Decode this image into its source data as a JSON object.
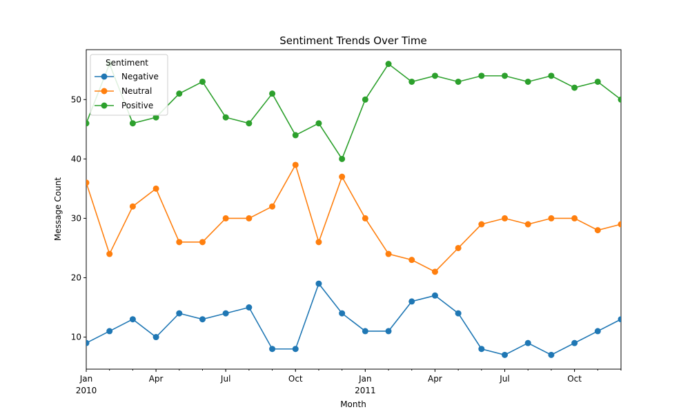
{
  "chart_data": {
    "type": "line",
    "title": "Sentiment Trends Over Time",
    "xlabel": "Month",
    "ylabel": "Message Count",
    "x": [
      "2010-01",
      "2010-02",
      "2010-03",
      "2010-04",
      "2010-05",
      "2010-06",
      "2010-07",
      "2010-08",
      "2010-09",
      "2010-10",
      "2010-11",
      "2010-12",
      "2011-01",
      "2011-02",
      "2011-03",
      "2011-04",
      "2011-05",
      "2011-06",
      "2011-07",
      "2011-08",
      "2011-09",
      "2011-10",
      "2011-11",
      "2011-12"
    ],
    "ylim": [
      4.6,
      58.4
    ],
    "y_ticks": [
      10,
      20,
      30,
      40,
      50
    ],
    "x_ticks": [
      {
        "label": "Jan",
        "sublabel": "2010",
        "x": "2010-01"
      },
      {
        "label": "Apr",
        "sublabel": "",
        "x": "2010-04"
      },
      {
        "label": "Jul",
        "sublabel": "",
        "x": "2010-07"
      },
      {
        "label": "Oct",
        "sublabel": "",
        "x": "2010-10"
      },
      {
        "label": "Jan",
        "sublabel": "2011",
        "x": "2011-01"
      },
      {
        "label": "Apr",
        "sublabel": "",
        "x": "2011-04"
      },
      {
        "label": "Jul",
        "sublabel": "",
        "x": "2011-07"
      },
      {
        "label": "Oct",
        "sublabel": "",
        "x": "2011-10"
      }
    ],
    "grid": false,
    "legend": {
      "title": "Sentiment",
      "position": "top-left"
    },
    "series": [
      {
        "name": "Negative",
        "color": "#1f77b4",
        "values": [
          9,
          11,
          13,
          10,
          14,
          13,
          14,
          15,
          8,
          8,
          19,
          14,
          11,
          11,
          16,
          17,
          14,
          8,
          7,
          9,
          7,
          9,
          11,
          13
        ]
      },
      {
        "name": "Neutral",
        "color": "#ff7f0e",
        "values": [
          36,
          24,
          32,
          35,
          26,
          26,
          30,
          30,
          32,
          39,
          26,
          37,
          30,
          24,
          23,
          21,
          25,
          29,
          30,
          29,
          30,
          30,
          28,
          29
        ]
      },
      {
        "name": "Positive",
        "color": "#2ca02c",
        "values": [
          46,
          56,
          46,
          47,
          51,
          53,
          47,
          46,
          51,
          44,
          46,
          40,
          50,
          56,
          53,
          54,
          53,
          54,
          54,
          53,
          54,
          52,
          53,
          50
        ]
      }
    ]
  }
}
